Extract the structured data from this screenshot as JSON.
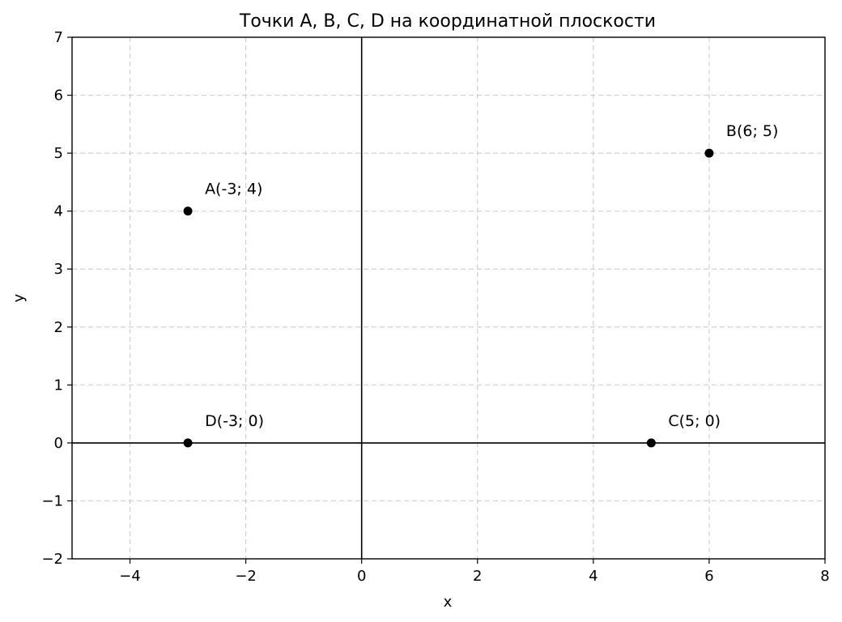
{
  "chart_data": {
    "type": "scatter",
    "title": "Точки A, B, C, D на координатной плоскости",
    "xlabel": "x",
    "ylabel": "y",
    "xlim": [
      -5,
      8
    ],
    "ylim": [
      -2,
      7
    ],
    "xticks": [
      -4,
      -2,
      0,
      2,
      4,
      6,
      8
    ],
    "xtick_labels": [
      "−4",
      "−2",
      "0",
      "2",
      "4",
      "6",
      "8"
    ],
    "yticks": [
      -2,
      -1,
      0,
      1,
      2,
      3,
      4,
      5,
      6,
      7
    ],
    "ytick_labels": [
      "−2",
      "−1",
      "0",
      "1",
      "2",
      "3",
      "4",
      "5",
      "6",
      "7"
    ],
    "grid": true,
    "point_color": "#000000",
    "points": [
      {
        "label": "A(-3; 4)",
        "x": -3,
        "y": 4
      },
      {
        "label": "B(6; 5)",
        "x": 6,
        "y": 5
      },
      {
        "label": "C(5; 0)",
        "x": 5,
        "y": 0
      },
      {
        "label": "D(-3; 0)",
        "x": -3,
        "y": 0
      }
    ]
  }
}
